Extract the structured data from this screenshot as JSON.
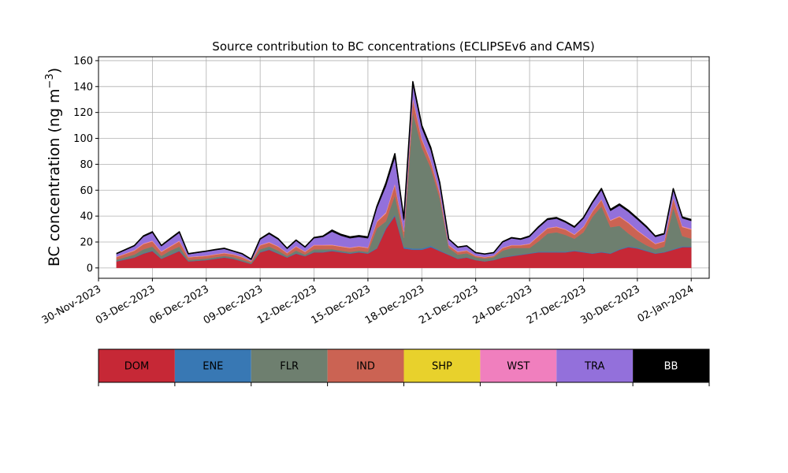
{
  "chart_data": {
    "type": "area",
    "stacked": true,
    "title": "Source contribution to BC concentrations (ECLIPSEv6 and CAMS)",
    "ylabel": "BC concentration (ng m",
    "ylabel_superscript": "−3",
    "ylabel_suffix": ")",
    "xlabel": "",
    "ylim": [
      -8,
      163
    ],
    "xlim": [
      "2023-11-30",
      "2024-01-03"
    ],
    "y_ticks": [
      0,
      20,
      40,
      60,
      80,
      100,
      120,
      140,
      160
    ],
    "x_ticks": [
      "2023-11-30",
      "2023-12-03",
      "2023-12-06",
      "2023-12-09",
      "2023-12-12",
      "2023-12-15",
      "2023-12-18",
      "2023-12-21",
      "2023-12-24",
      "2023-12-27",
      "2023-12-30",
      "2024-01-02"
    ],
    "x_tick_labels": [
      "30-Nov-2023",
      "03-Dec-2023",
      "06-Dec-2023",
      "09-Dec-2023",
      "12-Dec-2023",
      "15-Dec-2023",
      "18-Dec-2023",
      "21-Dec-2023",
      "24-Dec-2023",
      "27-Dec-2023",
      "30-Dec-2023",
      "02-Jan-2024"
    ],
    "grid": true,
    "legend_position": "bottom",
    "x": [
      "2023-12-01",
      "2023-12-02",
      "2023-12-02 12:00",
      "2023-12-03",
      "2023-12-03 12:00",
      "2023-12-04",
      "2023-12-04 12:00",
      "2023-12-05",
      "2023-12-06",
      "2023-12-06 12:00",
      "2023-12-07",
      "2023-12-07 12:00",
      "2023-12-08",
      "2023-12-08 12:00",
      "2023-12-09",
      "2023-12-09 12:00",
      "2023-12-10",
      "2023-12-10 12:00",
      "2023-12-11",
      "2023-12-11 12:00",
      "2023-12-12",
      "2023-12-12 12:00",
      "2023-12-13",
      "2023-12-13 12:00",
      "2023-12-14",
      "2023-12-14 12:00",
      "2023-12-15",
      "2023-12-15 12:00",
      "2023-12-16",
      "2023-12-16 12:00",
      "2023-12-17",
      "2023-12-17 12:00",
      "2023-12-18",
      "2023-12-18 12:00",
      "2023-12-19",
      "2023-12-19 12:00",
      "2023-12-20",
      "2023-12-20 12:00",
      "2023-12-21",
      "2023-12-21 12:00",
      "2023-12-22",
      "2023-12-22 12:00",
      "2023-12-23",
      "2023-12-23 12:00",
      "2023-12-24",
      "2023-12-24 12:00",
      "2023-12-25",
      "2023-12-25 12:00",
      "2023-12-26",
      "2023-12-26 12:00",
      "2023-12-27",
      "2023-12-27 12:00",
      "2023-12-28",
      "2023-12-28 12:00",
      "2023-12-29",
      "2023-12-29 12:00",
      "2023-12-30",
      "2023-12-30 12:00",
      "2023-12-31",
      "2023-12-31 12:00",
      "2024-01-01",
      "2024-01-01 12:00",
      "2024-01-02"
    ],
    "series": [
      {
        "name": "DOM",
        "color": "#c62836",
        "values": [
          5,
          8,
          11,
          13,
          7,
          10,
          13,
          5,
          6,
          7,
          8,
          7,
          5,
          3,
          12,
          14,
          11,
          8,
          11,
          9,
          12,
          12,
          13,
          12,
          11,
          12,
          11,
          15,
          30,
          40,
          15,
          14,
          14,
          16,
          13,
          10,
          7,
          8,
          6,
          5,
          6,
          8,
          9,
          10,
          11,
          12,
          12,
          12,
          12,
          13,
          12,
          11,
          12,
          11,
          14,
          16,
          15,
          13,
          11,
          12,
          14,
          16,
          16
        ]
      },
      {
        "name": "ENE",
        "color": "#3878b4",
        "values": [
          0.3,
          0.3,
          0.4,
          0.5,
          0.3,
          0.4,
          0.5,
          0.2,
          0.2,
          0.3,
          0.3,
          0.3,
          0.2,
          0.1,
          0.4,
          0.5,
          0.4,
          0.3,
          0.4,
          0.3,
          0.4,
          0.4,
          0.5,
          0.4,
          0.4,
          0.4,
          0.4,
          0.5,
          1,
          1,
          1,
          1,
          1,
          1,
          0.6,
          0.4,
          0.3,
          0.3,
          0.2,
          0.2,
          0.2,
          0.3,
          0.4,
          0.4,
          0.4,
          0.5,
          0.5,
          0.5,
          0.5,
          0.5,
          0.5,
          0.4,
          0.5,
          0.4,
          0.5,
          0.6,
          0.6,
          0.5,
          0.4,
          0.4,
          0.5,
          0.6,
          0.6
        ]
      },
      {
        "name": "FLR",
        "color": "#6e7f6f",
        "values": [
          1,
          2,
          3,
          3,
          2,
          3,
          3,
          1,
          1,
          1,
          1,
          1,
          1,
          1,
          2,
          2,
          2,
          1,
          2,
          1,
          2,
          2,
          1,
          1,
          1,
          1,
          1,
          15,
          5,
          15,
          7,
          105,
          78,
          60,
          40,
          5,
          3,
          3,
          2,
          2,
          2,
          5,
          6,
          5,
          4,
          8,
          14,
          15,
          13,
          9,
          15,
          28,
          35,
          20,
          18,
          10,
          6,
          4,
          3,
          4,
          32,
          8,
          6
        ]
      },
      {
        "name": "IND",
        "color": "#cb6353",
        "values": [
          2,
          3,
          4,
          4,
          3,
          3,
          4,
          2,
          2,
          2,
          2,
          2,
          2,
          1,
          3,
          3,
          3,
          2,
          3,
          2,
          3,
          3,
          3,
          3,
          3,
          3,
          3,
          5,
          6,
          8,
          5,
          10,
          6,
          5,
          4,
          2,
          2,
          2,
          1,
          1,
          1,
          2,
          2,
          2,
          3,
          4,
          4,
          4,
          4,
          3,
          4,
          4,
          5,
          5,
          7,
          8,
          7,
          6,
          4,
          4,
          7,
          7,
          7
        ]
      },
      {
        "name": "SHP",
        "color": "#e8d12c",
        "values": [
          0.1,
          0.1,
          0.1,
          0.1,
          0.1,
          0.1,
          0.1,
          0.1,
          0.1,
          0.1,
          0.1,
          0.1,
          0.1,
          0.1,
          0.1,
          0.1,
          0.1,
          0.1,
          0.1,
          0.1,
          0.1,
          0.1,
          0.1,
          0.1,
          0.1,
          0.1,
          0.1,
          0.1,
          0.2,
          0.2,
          0.2,
          0.3,
          0.2,
          0.2,
          0.1,
          0.1,
          0.1,
          0.1,
          0.1,
          0.1,
          0.1,
          0.1,
          0.1,
          0.1,
          0.1,
          0.1,
          0.1,
          0.1,
          0.1,
          0.1,
          0.1,
          0.1,
          0.1,
          0.1,
          0.1,
          0.1,
          0.1,
          0.1,
          0.1,
          0.1,
          0.1,
          0.1,
          0.1
        ]
      },
      {
        "name": "WST",
        "color": "#f07fbe",
        "values": [
          0.3,
          0.4,
          0.5,
          0.5,
          0.4,
          0.5,
          0.5,
          0.3,
          0.3,
          0.3,
          0.3,
          0.3,
          0.3,
          0.2,
          0.4,
          0.5,
          0.4,
          0.3,
          0.4,
          0.3,
          0.4,
          0.4,
          0.4,
          0.4,
          0.4,
          0.4,
          0.4,
          0.5,
          0.8,
          1,
          0.5,
          1,
          0.8,
          0.7,
          0.6,
          0.3,
          0.3,
          0.3,
          0.2,
          0.2,
          0.2,
          0.3,
          0.3,
          0.3,
          0.4,
          0.4,
          0.4,
          0.4,
          0.4,
          0.4,
          0.4,
          0.4,
          0.5,
          0.5,
          0.5,
          0.6,
          0.6,
          0.5,
          0.4,
          0.4,
          0.6,
          0.6,
          0.6
        ]
      },
      {
        "name": "TRA",
        "color": "#9370db",
        "values": [
          2,
          3,
          5,
          6,
          4,
          5,
          6,
          2,
          3,
          3,
          3,
          2,
          2,
          1,
          4,
          6,
          5,
          3,
          4,
          3,
          5,
          6,
          10,
          8,
          7,
          7,
          7,
          10,
          20,
          20,
          8,
          10,
          8,
          8,
          6,
          4,
          3,
          3,
          2,
          2,
          2,
          4,
          5,
          4,
          5,
          6,
          6,
          6,
          5,
          5,
          6,
          6,
          7,
          7,
          8,
          8,
          8,
          7,
          5,
          5,
          6,
          6,
          6
        ]
      },
      {
        "name": "BB",
        "color": "#000000",
        "values": [
          0.4,
          0.5,
          0.7,
          0.8,
          0.5,
          0.7,
          0.8,
          0.4,
          0.4,
          0.5,
          0.5,
          0.4,
          0.4,
          0.3,
          0.6,
          0.8,
          0.7,
          0.5,
          0.6,
          0.5,
          0.6,
          0.7,
          1.2,
          1,
          1,
          1,
          1,
          1.5,
          2.5,
          3,
          1.5,
          2.5,
          2,
          2,
          1.5,
          0.5,
          0.4,
          0.4,
          0.3,
          0.3,
          0.3,
          0.5,
          0.6,
          0.6,
          0.7,
          0.8,
          0.9,
          0.9,
          0.8,
          0.8,
          0.9,
          1,
          1.2,
          1.1,
          1.2,
          1.2,
          1.1,
          1,
          0.7,
          0.7,
          1,
          1,
          1
        ]
      }
    ]
  },
  "legend": {
    "type": "colorbar",
    "items": [
      {
        "label": "DOM",
        "color": "#c62836",
        "text_color": "#000000"
      },
      {
        "label": "ENE",
        "color": "#3878b4",
        "text_color": "#000000"
      },
      {
        "label": "FLR",
        "color": "#6e7f6f",
        "text_color": "#000000"
      },
      {
        "label": "IND",
        "color": "#cb6353",
        "text_color": "#000000"
      },
      {
        "label": "SHP",
        "color": "#e8d12c",
        "text_color": "#000000"
      },
      {
        "label": "WST",
        "color": "#f07fbe",
        "text_color": "#000000"
      },
      {
        "label": "TRA",
        "color": "#9370db",
        "text_color": "#000000"
      },
      {
        "label": "BB",
        "color": "#000000",
        "text_color": "#ffffff"
      }
    ]
  }
}
